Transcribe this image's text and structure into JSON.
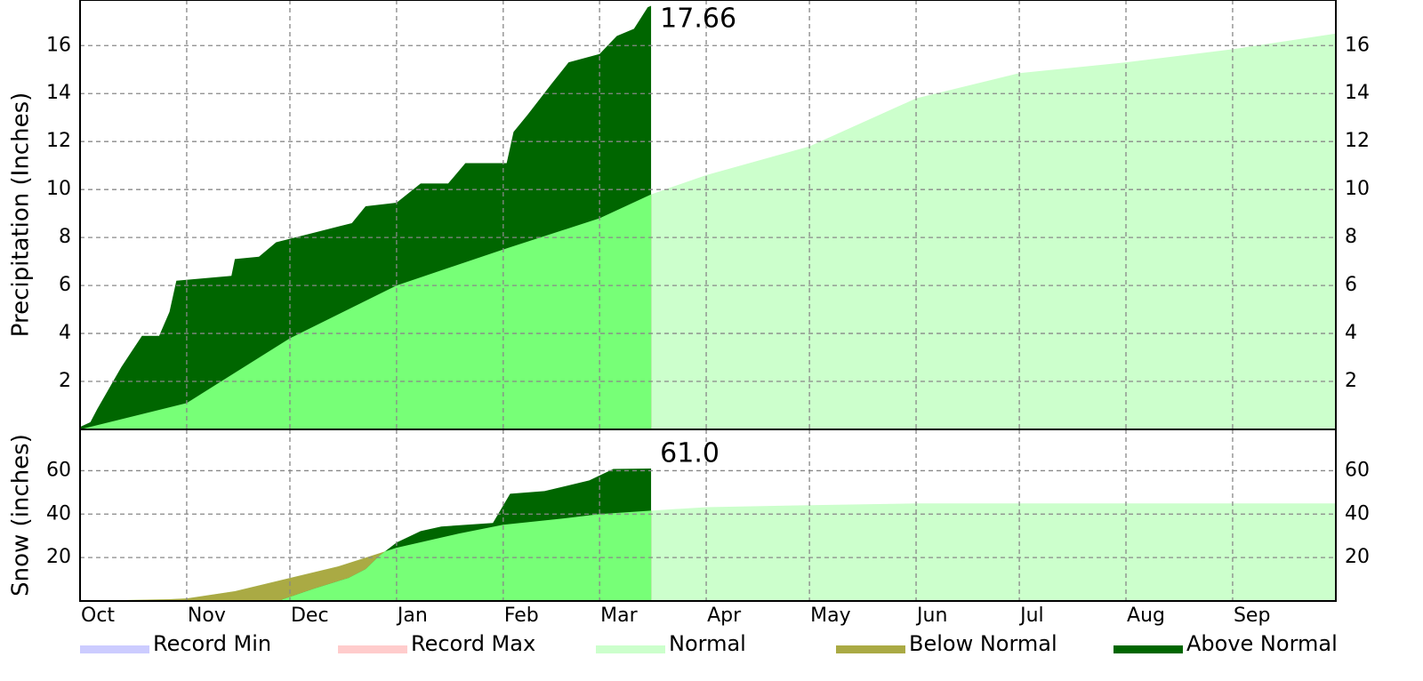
{
  "chart_data": [
    {
      "type": "area",
      "ylabel": "Precipitation (Inches)",
      "xlim": [
        0,
        365
      ],
      "xgrid": [
        0,
        31,
        61,
        92,
        123,
        151,
        182,
        212,
        243,
        273,
        304,
        335
      ],
      "ylim": [
        0,
        17.9
      ],
      "yticks": [
        2,
        4,
        6,
        8,
        10,
        12,
        14,
        16
      ],
      "grid": true,
      "annotation": "17.66",
      "series": [
        {
          "color": "#ccffcc",
          "past_color": "#77ff77",
          "below_color": "#aaaa44",
          "x": [
            0,
            31,
            61,
            92,
            123,
            151,
            166,
            182,
            212,
            243,
            273,
            304,
            335,
            365
          ],
          "values": [
            0,
            1.1,
            3.8,
            6.0,
            7.5,
            8.8,
            9.8,
            10.6,
            11.8,
            13.8,
            14.85,
            15.3,
            15.85,
            16.5
          ]
        },
        {
          "color": "#006600",
          "x": [
            0,
            3,
            5,
            8,
            12,
            15,
            18,
            23,
            26,
            28,
            44,
            45,
            52,
            57,
            68,
            79,
            83,
            92,
            99,
            107,
            112,
            124,
            126,
            130,
            137,
            142,
            151,
            156,
            161,
            165,
            166
          ],
          "values": [
            0.1,
            0.3,
            0.85,
            1.6,
            2.6,
            3.25,
            3.9,
            3.9,
            4.9,
            6.2,
            6.4,
            7.1,
            7.2,
            7.8,
            8.2,
            8.6,
            9.3,
            9.45,
            10.25,
            10.25,
            11.1,
            11.1,
            12.4,
            13.1,
            14.4,
            15.3,
            15.65,
            16.4,
            16.7,
            17.6,
            17.66
          ]
        }
      ]
    },
    {
      "type": "area",
      "ylabel": "Snow (inches)",
      "xlim": [
        0,
        365
      ],
      "xticks": [
        {
          "value": 0,
          "label": "Oct"
        },
        {
          "value": 31,
          "label": "Nov"
        },
        {
          "value": 61,
          "label": "Dec"
        },
        {
          "value": 92,
          "label": "Jan"
        },
        {
          "value": 123,
          "label": "Feb"
        },
        {
          "value": 151,
          "label": "Mar"
        },
        {
          "value": 182,
          "label": "Apr"
        },
        {
          "value": 212,
          "label": "May"
        },
        {
          "value": 243,
          "label": "Jun"
        },
        {
          "value": 273,
          "label": "Jul"
        },
        {
          "value": 304,
          "label": "Aug"
        },
        {
          "value": 335,
          "label": "Sep"
        }
      ],
      "ylim": [
        0,
        79
      ],
      "yticks": [
        20,
        40,
        60
      ],
      "grid": true,
      "annotation": "61.0",
      "series": [
        {
          "color": "#ccffcc",
          "past_color": "#77ff77",
          "below_color": "#aaaa44",
          "x": [
            0,
            26,
            31,
            45,
            61,
            75,
            92,
            110,
            123,
            140,
            151,
            166,
            182,
            212,
            243,
            365
          ],
          "values": [
            0,
            0.8,
            1.2,
            4.5,
            10.6,
            15.9,
            24.5,
            31.0,
            35.1,
            37.9,
            40.0,
            41.6,
            43.2,
            44.1,
            44.9,
            44.9
          ]
        },
        {
          "color": "#006600",
          "x": [
            0,
            58,
            59,
            68,
            78,
            83,
            87,
            92,
            99,
            105,
            120,
            125,
            135,
            148,
            155,
            166
          ],
          "values": [
            0,
            0,
            0.8,
            5.7,
            10.6,
            14.7,
            20.8,
            26.9,
            32.2,
            34.3,
            35.9,
            49.4,
            50.6,
            55.5,
            60.8,
            61.0
          ]
        }
      ]
    }
  ],
  "legend": [
    {
      "name": "Record Min",
      "color": "#ccccff"
    },
    {
      "name": "Record Max",
      "color": "#ffcccc"
    },
    {
      "name": "Normal",
      "color": "#ccffcc"
    },
    {
      "name": "Below Normal",
      "color": "#aaaa44"
    },
    {
      "name": "Above Normal",
      "color": "#006600"
    }
  ]
}
